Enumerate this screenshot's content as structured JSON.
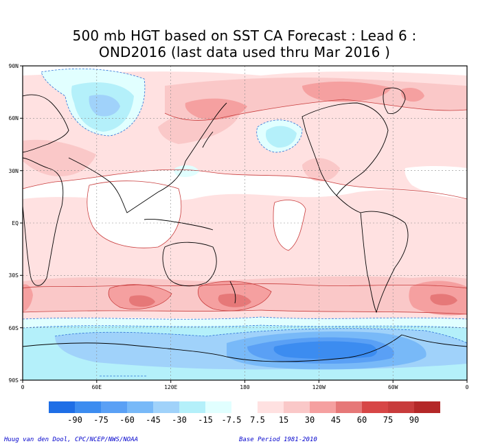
{
  "title_line1": "500 mb HGT based on SST CA Forecast : Lead 6 :",
  "title_line2": "OND2016 (last data used thru Mar 2016 )",
  "lat_labels": [
    "90N",
    "60N",
    "30N",
    "EQ",
    "30S",
    "60S",
    "90S"
  ],
  "lon_labels": [
    "0",
    "60E",
    "120E",
    "180",
    "120W",
    "60W",
    "0"
  ],
  "scale": {
    "labels": [
      "-90",
      "-75",
      "-60",
      "-45",
      "-30",
      "-15",
      "-7.5",
      "7.5",
      "15",
      "30",
      "45",
      "60",
      "75",
      "90"
    ],
    "colors": [
      "#1e6ee6",
      "#3c8cf0",
      "#5aa0f5",
      "#78b9f8",
      "#a0d2fa",
      "#b4f0fa",
      "#e1ffff",
      "#ffffff",
      "#ffe1e1",
      "#fac8c8",
      "#f5a0a0",
      "#e67878",
      "#d74646",
      "#c83c3c",
      "#b42828"
    ]
  },
  "footer_left": "Huug van den Dool, CPC/NCEP/NWS/NOAA",
  "footer_right": "Base Period 1981-2010"
}
